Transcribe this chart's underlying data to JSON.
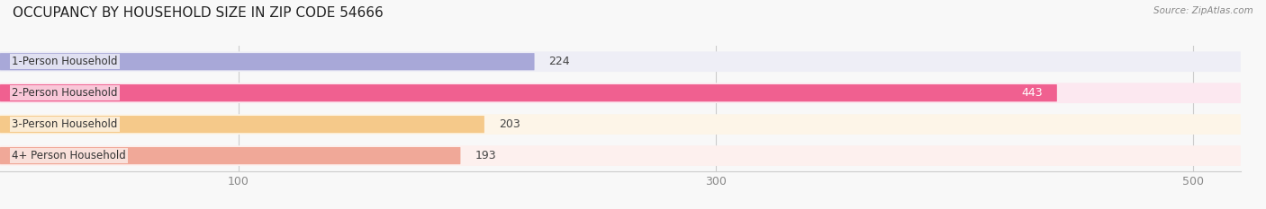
{
  "title": "OCCUPANCY BY HOUSEHOLD SIZE IN ZIP CODE 54666",
  "source": "Source: ZipAtlas.com",
  "categories": [
    "1-Person Household",
    "2-Person Household",
    "3-Person Household",
    "4+ Person Household"
  ],
  "values": [
    224,
    443,
    203,
    193
  ],
  "bar_colors": [
    "#a8a8d8",
    "#f06090",
    "#f5c98a",
    "#f0a898"
  ],
  "bg_colors": [
    "#eeeef6",
    "#fce8f0",
    "#fdf5e8",
    "#fdf0ee"
  ],
  "xlim": [
    0,
    520
  ],
  "xticks": [
    100,
    300,
    500
  ],
  "label_colors": [
    "#444444",
    "#ffffff",
    "#444444",
    "#444444"
  ],
  "title_fontsize": 11,
  "tick_fontsize": 9,
  "bar_label_fontsize": 9,
  "category_fontsize": 8.5,
  "bar_height": 0.55,
  "bg_color": "#f8f8f8"
}
